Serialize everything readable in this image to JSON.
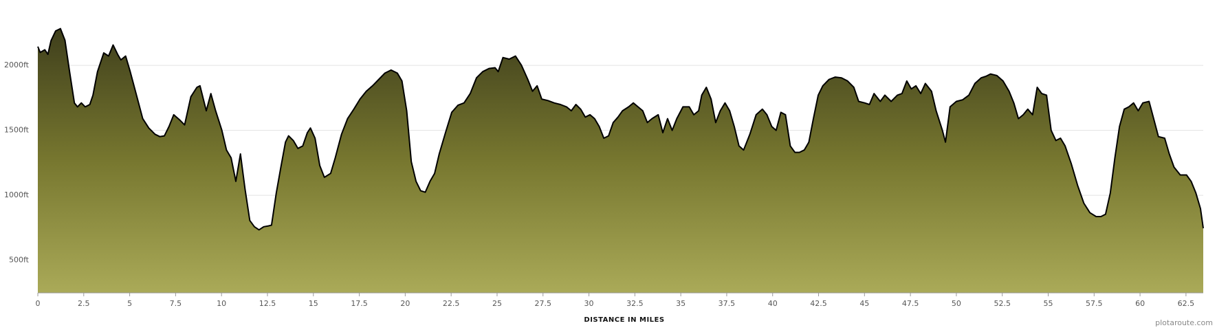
{
  "chart_data": {
    "type": "area",
    "x_label": "DISTANCE IN MILES",
    "credit": "plotaroute.com",
    "color": "#000000",
    "xlim": [
      0,
      63.44
    ],
    "ylim": [
      250,
      2450
    ],
    "xticks": [
      0,
      2.5,
      5,
      7.5,
      10,
      12.5,
      15,
      17.5,
      20,
      22.5,
      25,
      27.5,
      30,
      32.5,
      35,
      37.5,
      40,
      42.5,
      45,
      47.5,
      50,
      52.5,
      55,
      57.5,
      60,
      62.5
    ],
    "yticks": [
      {
        "value": 500,
        "label": "500ft"
      },
      {
        "value": 1000,
        "label": "1000ft"
      },
      {
        "value": 1500,
        "label": "1500ft"
      },
      {
        "value": 2000,
        "label": "2000ft"
      }
    ],
    "grid": true,
    "x": [
      0,
      0.13,
      0.38,
      0.55,
      0.72,
      0.97,
      1.23,
      1.48,
      1.73,
      1.99,
      2.16,
      2.37,
      2.58,
      2.83,
      3.0,
      3.25,
      3.59,
      3.85,
      4.1,
      4.35,
      4.52,
      4.78,
      5.03,
      5.37,
      5.71,
      6.04,
      6.38,
      6.64,
      6.89,
      7.14,
      7.4,
      7.74,
      7.99,
      8.33,
      8.66,
      8.83,
      9.17,
      9.42,
      9.68,
      10.02,
      10.27,
      10.52,
      10.78,
      11.03,
      11.28,
      11.54,
      11.79,
      12.04,
      12.3,
      12.55,
      12.72,
      12.98,
      13.23,
      13.48,
      13.65,
      13.91,
      14.16,
      14.42,
      14.67,
      14.84,
      15.09,
      15.35,
      15.6,
      15.94,
      16.19,
      16.53,
      16.86,
      17.2,
      17.54,
      17.88,
      18.22,
      18.56,
      18.89,
      19.23,
      19.57,
      19.82,
      20.08,
      20.33,
      20.59,
      20.84,
      21.09,
      21.35,
      21.6,
      21.85,
      22.19,
      22.53,
      22.87,
      23.2,
      23.54,
      23.88,
      24.22,
      24.56,
      24.89,
      25.06,
      25.32,
      25.66,
      26.0,
      26.33,
      26.67,
      26.93,
      27.18,
      27.43,
      27.77,
      28.11,
      28.45,
      28.78,
      29.04,
      29.29,
      29.55,
      29.8,
      30.06,
      30.31,
      30.56,
      30.81,
      31.07,
      31.32,
      31.58,
      31.83,
      32.16,
      32.42,
      32.67,
      32.93,
      33.18,
      33.43,
      33.77,
      34.02,
      34.28,
      34.53,
      34.78,
      35.12,
      35.46,
      35.71,
      35.97,
      36.14,
      36.39,
      36.65,
      36.9,
      37.15,
      37.41,
      37.66,
      37.91,
      38.17,
      38.42,
      38.76,
      39.1,
      39.44,
      39.69,
      39.95,
      40.19,
      40.45,
      40.7,
      40.96,
      41.21,
      41.46,
      41.72,
      41.97,
      42.22,
      42.48,
      42.73,
      43.07,
      43.41,
      43.75,
      44.08,
      44.42,
      44.68,
      45.01,
      45.27,
      45.52,
      45.86,
      46.11,
      46.45,
      46.79,
      47.04,
      47.3,
      47.55,
      47.8,
      48.06,
      48.31,
      48.65,
      48.9,
      49.24,
      49.41,
      49.66,
      50.0,
      50.34,
      50.68,
      51.01,
      51.35,
      51.61,
      51.86,
      52.2,
      52.54,
      52.87,
      53.13,
      53.38,
      53.64,
      53.89,
      54.15,
      54.4,
      54.65,
      54.91,
      55.16,
      55.42,
      55.67,
      55.92,
      56.26,
      56.6,
      56.94,
      57.27,
      57.61,
      57.87,
      58.12,
      58.38,
      58.63,
      58.88,
      59.14,
      59.39,
      59.65,
      59.9,
      60.15,
      60.49,
      60.74,
      61.0,
      61.34,
      61.59,
      61.85,
      62.19,
      62.53,
      62.78,
      63.04,
      63.29,
      63.44
    ],
    "values": [
      2145,
      2100,
      2120,
      2085,
      2190,
      2265,
      2283,
      2193,
      1952,
      1711,
      1681,
      1711,
      1681,
      1699,
      1771,
      1952,
      2096,
      2072,
      2157,
      2084,
      2042,
      2072,
      1952,
      1771,
      1590,
      1518,
      1470,
      1452,
      1458,
      1530,
      1620,
      1578,
      1542,
      1759,
      1831,
      1843,
      1651,
      1783,
      1651,
      1500,
      1349,
      1289,
      1108,
      1319,
      1048,
      807,
      759,
      735,
      759,
      765,
      771,
      1018,
      1217,
      1410,
      1458,
      1422,
      1361,
      1380,
      1482,
      1518,
      1440,
      1229,
      1139,
      1169,
      1289,
      1470,
      1590,
      1663,
      1741,
      1801,
      1843,
      1892,
      1940,
      1964,
      1940,
      1880,
      1651,
      1259,
      1108,
      1036,
      1024,
      1108,
      1169,
      1319,
      1482,
      1639,
      1693,
      1711,
      1783,
      1904,
      1952,
      1976,
      1982,
      1952,
      2060,
      2048,
      2072,
      2000,
      1892,
      1801,
      1843,
      1741,
      1729,
      1711,
      1699,
      1681,
      1651,
      1699,
      1663,
      1602,
      1620,
      1590,
      1530,
      1440,
      1458,
      1560,
      1602,
      1651,
      1681,
      1711,
      1681,
      1651,
      1560,
      1590,
      1620,
      1482,
      1590,
      1500,
      1590,
      1681,
      1681,
      1620,
      1651,
      1771,
      1831,
      1741,
      1560,
      1651,
      1711,
      1651,
      1530,
      1380,
      1349,
      1470,
      1620,
      1663,
      1620,
      1530,
      1500,
      1639,
      1620,
      1380,
      1331,
      1331,
      1349,
      1410,
      1590,
      1771,
      1843,
      1892,
      1910,
      1904,
      1880,
      1831,
      1723,
      1711,
      1699,
      1783,
      1723,
      1771,
      1723,
      1771,
      1783,
      1880,
      1819,
      1843,
      1783,
      1861,
      1801,
      1651,
      1500,
      1410,
      1681,
      1723,
      1735,
      1771,
      1861,
      1904,
      1916,
      1934,
      1922,
      1880,
      1801,
      1711,
      1590,
      1620,
      1663,
      1620,
      1831,
      1783,
      1771,
      1500,
      1422,
      1440,
      1380,
      1241,
      1078,
      940,
      867,
      837,
      837,
      855,
      1018,
      1289,
      1530,
      1663,
      1681,
      1711,
      1651,
      1711,
      1723,
      1590,
      1452,
      1440,
      1319,
      1217,
      1157,
      1157,
      1108,
      1018,
      898,
      747
    ]
  }
}
